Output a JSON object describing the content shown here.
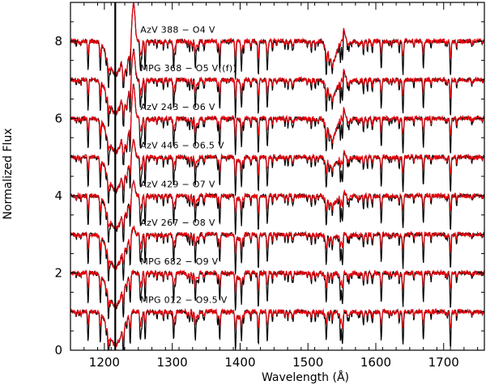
{
  "chart_data": {
    "type": "line",
    "xlabel": "Wavelength (Å)",
    "ylabel": "Normalized Flux",
    "xlim": [
      1150,
      1760
    ],
    "ylim": [
      0,
      9
    ],
    "xticks": [
      1200,
      1300,
      1400,
      1500,
      1600,
      1700
    ],
    "yticks": [
      0,
      2,
      4,
      6,
      8
    ],
    "grid": false,
    "vertical_marker": 1216,
    "colors": {
      "observed": "#000000",
      "model": "#e8000b"
    },
    "spectra": [
      {
        "label": "AzV 388 − O4 V",
        "offset": 8,
        "wind": 1.0
      },
      {
        "label": "MPG 368 − O5 V((f))",
        "offset": 7,
        "wind": 0.8
      },
      {
        "label": "AzV 243 − O6 V",
        "offset": 6,
        "wind": 0.9
      },
      {
        "label": "AzV 446 − O6.5 V",
        "offset": 5,
        "wind": 0.45
      },
      {
        "label": "AzV 429 − O7 V",
        "offset": 4,
        "wind": 0.4
      },
      {
        "label": "AzV 267 − O8 V",
        "offset": 3,
        "wind": 0.2
      },
      {
        "label": "MPG 682 − O9 V",
        "offset": 2,
        "wind": 0.05
      },
      {
        "label": "MPG 012 − O9.5 V",
        "offset": 1,
        "wind": 0.02
      }
    ]
  }
}
